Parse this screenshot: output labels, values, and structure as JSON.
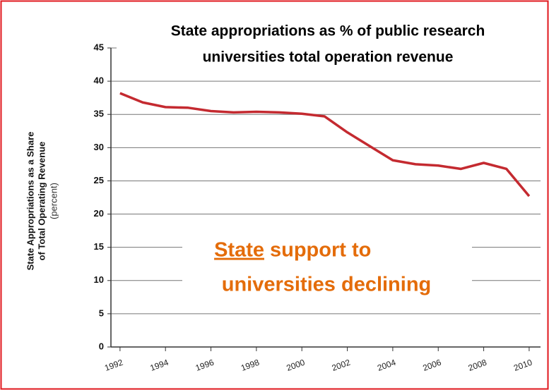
{
  "chart_data": {
    "type": "line",
    "title": [
      "State appropriations as % of public research",
      "universities total operation revenue"
    ],
    "y_label": [
      "State Appropriations as a Share",
      "of Total Operating Revenue",
      "(percent)"
    ],
    "annotation": [
      "State",
      "support to",
      "universities declining"
    ],
    "x": [
      1992,
      1993,
      1994,
      1995,
      1996,
      1997,
      1998,
      1999,
      2000,
      2001,
      2002,
      2003,
      2004,
      2005,
      2006,
      2007,
      2008,
      2009,
      2010
    ],
    "series": [
      {
        "color": "#c42a30",
        "values": [
          38.2,
          36.8,
          36.1,
          36.0,
          35.5,
          35.3,
          35.4,
          35.3,
          35.1,
          34.7,
          32.3,
          30.2,
          28.1,
          27.5,
          27.3,
          26.8,
          27.7,
          26.8,
          22.7
        ]
      }
    ],
    "xlim": [
      1991.6,
      2010.5
    ],
    "xticks": [
      1992,
      1994,
      1996,
      1998,
      2000,
      2002,
      2004,
      2006,
      2008,
      2010
    ],
    "ylim": [
      0,
      45
    ],
    "yticks": [
      0,
      5,
      10,
      15,
      20,
      25,
      30,
      35,
      40,
      45
    ],
    "grid": true
  }
}
